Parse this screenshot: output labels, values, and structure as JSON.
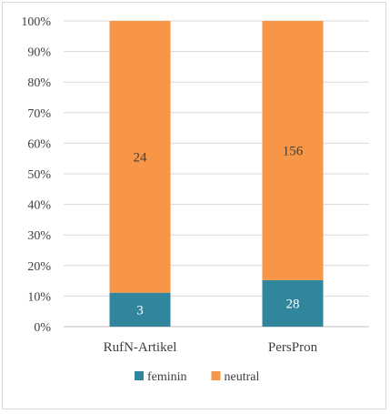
{
  "chart_data": {
    "type": "bar",
    "stacked": "percent",
    "categories": [
      "RufN-Artikel",
      "PersPron"
    ],
    "series": [
      {
        "name": "feminin",
        "values": [
          3,
          28
        ],
        "color": "#31859c"
      },
      {
        "name": "neutral",
        "values": [
          24,
          156
        ],
        "color": "#f79646"
      }
    ],
    "y_ticks": [
      "0%",
      "10%",
      "20%",
      "30%",
      "40%",
      "50%",
      "60%",
      "70%",
      "80%",
      "90%",
      "100%"
    ],
    "ylim": [
      0,
      100
    ],
    "grid": true,
    "legend": "bottom",
    "title": "",
    "xlabel": "",
    "ylabel": ""
  }
}
